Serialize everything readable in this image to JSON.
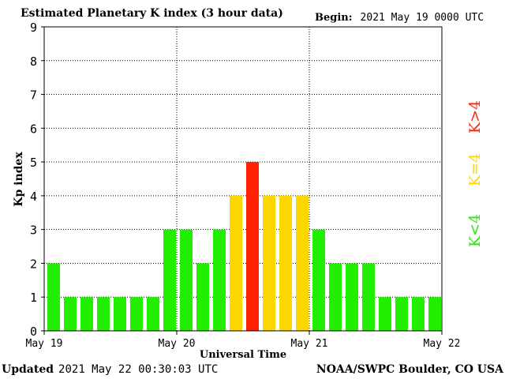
{
  "header": {
    "title": "Estimated Planetary K index (3 hour data)",
    "begin_label": "Begin:",
    "begin_value": "2021 May 19 0000 UTC"
  },
  "footer": {
    "updated_label": "Updated",
    "updated_value": "2021 May 22 00:30:03 UTC",
    "source": "NOAA/SWPC Boulder, CO USA"
  },
  "legend": [
    {
      "label": "K<4",
      "color": "#22ee00"
    },
    {
      "label": "K=4",
      "color": "#ffd700"
    },
    {
      "label": "K>4",
      "color": "#ff2200"
    }
  ],
  "chart_data": {
    "type": "bar",
    "title": "Estimated Planetary K index (3 hour data)",
    "xlabel": "Universal Time",
    "ylabel": "Kp index",
    "ylim": [
      0,
      9
    ],
    "yticks": [
      "0",
      "1",
      "2",
      "3",
      "4",
      "5",
      "6",
      "7",
      "8",
      "9"
    ],
    "xticks": [
      "May 19",
      "May 20",
      "May 21",
      "May 22"
    ],
    "grid": true,
    "values": [
      2,
      1,
      1,
      1,
      1,
      1,
      1,
      3,
      3,
      2,
      3,
      4,
      5,
      4,
      4,
      4,
      3,
      2,
      2,
      2,
      1,
      1,
      1,
      1
    ],
    "colors": {
      "below4": "#22ee00",
      "equal4": "#ffd700",
      "above4": "#ff2200"
    }
  }
}
